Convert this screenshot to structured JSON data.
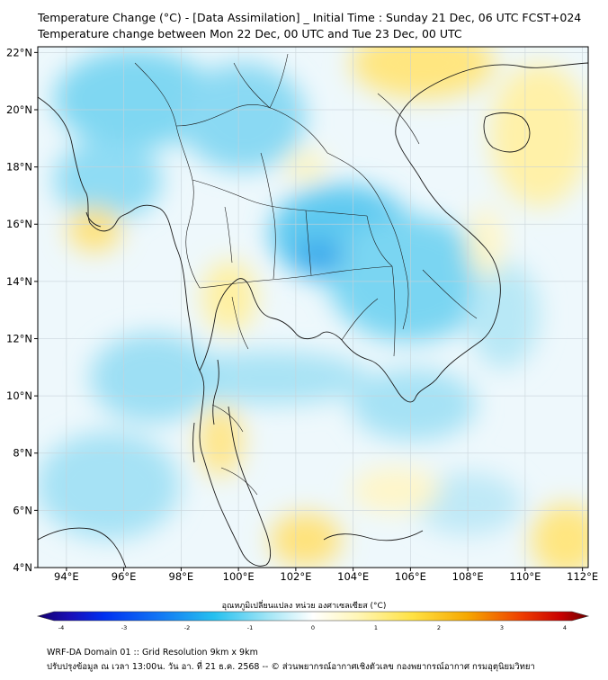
{
  "header": {
    "title_line1": "Temperature Change (°C) - [Data Assimilation] _ Initial Time : Sunday 21 Dec, 06 UTC FCST+024",
    "title_line2": "Temperature change between Mon 22 Dec, 00 UTC and Tue 23 Dec, 00 UTC"
  },
  "map": {
    "lat_labels": [
      "22°N",
      "20°N",
      "18°N",
      "16°N",
      "14°N",
      "12°N",
      "10°N",
      "8°N",
      "6°N",
      "4°N"
    ],
    "lat_values": [
      22,
      20,
      18,
      16,
      14,
      12,
      10,
      8,
      6,
      4
    ],
    "lon_labels": [
      "94°E",
      "96°E",
      "98°E",
      "100°E",
      "102°E",
      "104°E",
      "106°E",
      "108°E",
      "110°E",
      "112°E"
    ],
    "lon_values": [
      94,
      96,
      98,
      100,
      102,
      104,
      106,
      108,
      110,
      112
    ],
    "lat_range": [
      4,
      22.2
    ],
    "lon_range": [
      93,
      112.2
    ]
  },
  "colorbar": {
    "title": "อุณหภูมิเปลี่ยนแปลง หน่วย องศาเซลเซียส (°C)",
    "ticks": [
      "-4",
      "-3",
      "-2",
      "-1",
      "0",
      "1",
      "2",
      "3",
      "4"
    ],
    "tick_values": [
      -4,
      -3,
      -2,
      -1,
      0,
      1,
      2,
      3,
      4
    ],
    "colors": {
      "min": "#1a0080",
      "cold": "#0020e0",
      "cool": "#2fb8ee",
      "zero": "#ffffff",
      "warm": "#ffe24a",
      "hot": "#f08a00",
      "max": "#8a0000"
    }
  },
  "footer": {
    "line1": "WRF-DA Domain 01 :: Grid Resolution 9km x 9km",
    "line2": "ปรับปรุงข้อมูล ณ เวลา 13:00น. วัน อา. ที่ 21 ธ.ค. 2568 -- © ส่วนพยากรณ์อากาศเชิงตัวเลข กองพยากรณ์อากาศ กรมอุตุนิยมวิทยา"
  }
}
